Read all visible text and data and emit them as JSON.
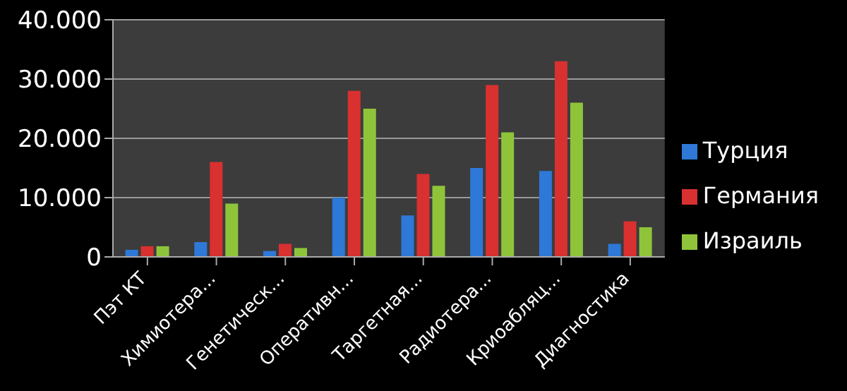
{
  "chart_data": {
    "type": "bar",
    "categories": [
      "Пэт КТ",
      "Химиотера...",
      "Генетическ...",
      "Оперативн...",
      "Таргетная...",
      "Радиотера...",
      "Криоабляц...",
      "Диагностика"
    ],
    "series": [
      {
        "name": "Турция",
        "color": "#2e78d8",
        "values": [
          1200,
          2500,
          1000,
          10000,
          7000,
          15000,
          14500,
          2200
        ]
      },
      {
        "name": "Германия",
        "color": "#d93030",
        "values": [
          1800,
          16000,
          2200,
          28000,
          14000,
          29000,
          33000,
          6000
        ]
      },
      {
        "name": "Израиль",
        "color": "#8fc43a",
        "values": [
          1800,
          9000,
          1500,
          25000,
          12000,
          21000,
          26000,
          5000
        ]
      }
    ],
    "ylim": [
      0,
      40000
    ],
    "yticks": [
      {
        "value": 0,
        "label": "0"
      },
      {
        "value": 10000,
        "label": "10.000"
      },
      {
        "value": 20000,
        "label": "20.000"
      },
      {
        "value": 30000,
        "label": "30.000"
      },
      {
        "value": 40000,
        "label": "40.000"
      }
    ],
    "grid": "y",
    "legend": "right"
  }
}
